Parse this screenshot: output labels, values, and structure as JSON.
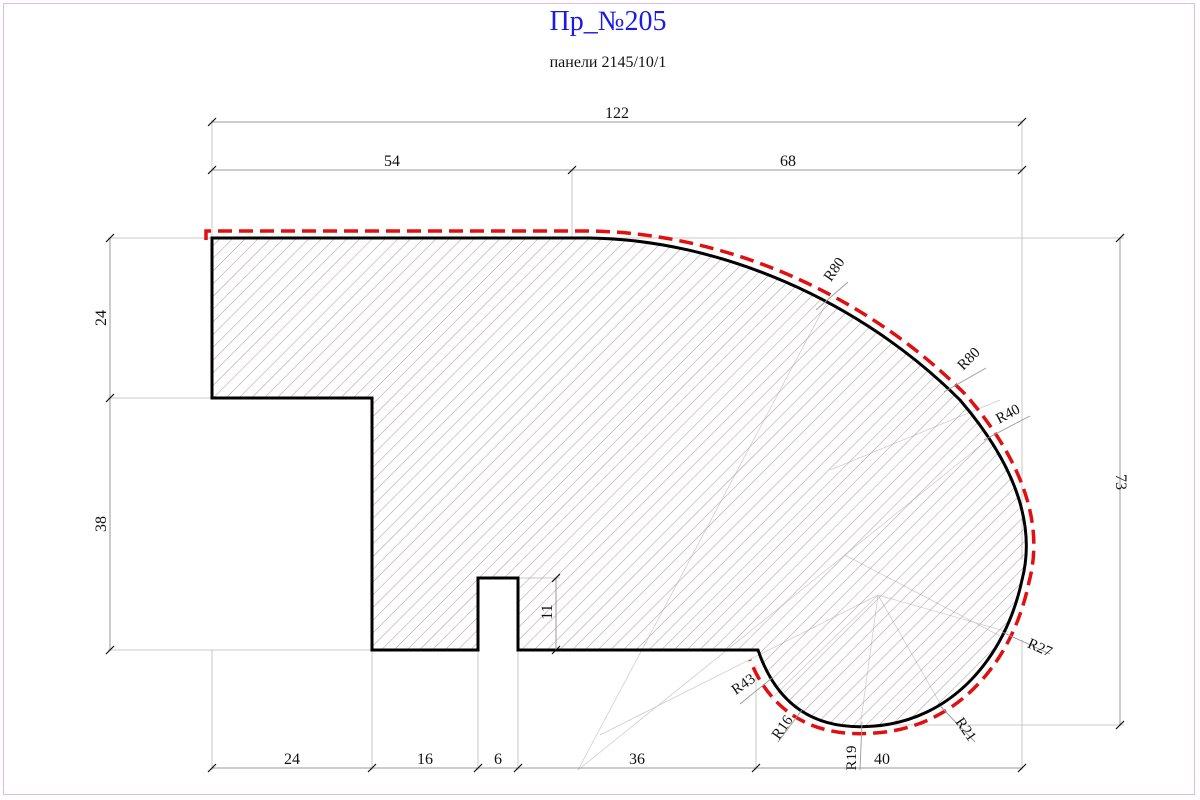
{
  "title": "Пр_№205",
  "subtitle": "панели 2145/10/1",
  "colors": {
    "title": "#1a1ae6",
    "outline": "#000000",
    "hatch": "#a08c8c",
    "face_line": "#e01010",
    "frame": "#e7b8e7"
  },
  "dimensions": {
    "overall_width": "122",
    "top_left_width": "54",
    "top_right_width": "68",
    "left_upper_height": "24",
    "left_lower_height": "38",
    "right_height": "73",
    "groove_depth": "11",
    "bottom_1": "24",
    "bottom_2": "16",
    "bottom_3": "6",
    "bottom_4": "36",
    "bottom_5": "40"
  },
  "radii": {
    "r80_a": "R80",
    "r80_b": "R80",
    "r40": "R40",
    "r27": "R27",
    "r21": "R21",
    "r19": "R19",
    "r16": "R16",
    "r43": "R43"
  }
}
